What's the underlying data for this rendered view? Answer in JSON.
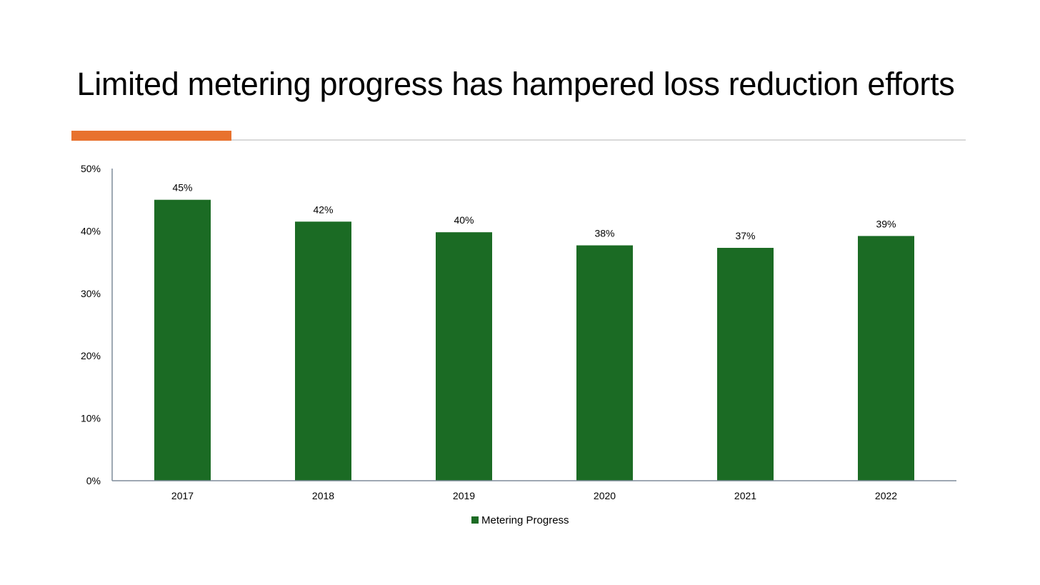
{
  "colors": {
    "bar": "#1b6b24",
    "accent": "#e8722e",
    "axis": "#7f8c9a",
    "rule": "#d9d9d9"
  },
  "chart_data": {
    "type": "bar",
    "title": "Limited metering progress has hampered loss reduction efforts",
    "categories": [
      "2017",
      "2018",
      "2019",
      "2020",
      "2021",
      "2022"
    ],
    "series": [
      {
        "name": "Metering Progress",
        "values": [
          45,
          41.5,
          39.8,
          37.7,
          37.3,
          39.2
        ],
        "data_labels": [
          "45%",
          "42%",
          "40%",
          "38%",
          "37%",
          "39%"
        ]
      }
    ],
    "y_ticks": [
      "0%",
      "10%",
      "20%",
      "30%",
      "40%",
      "50%"
    ],
    "ylim": [
      0,
      50
    ],
    "y_unit": "%",
    "grid": false,
    "legend_position": "bottom-center"
  }
}
